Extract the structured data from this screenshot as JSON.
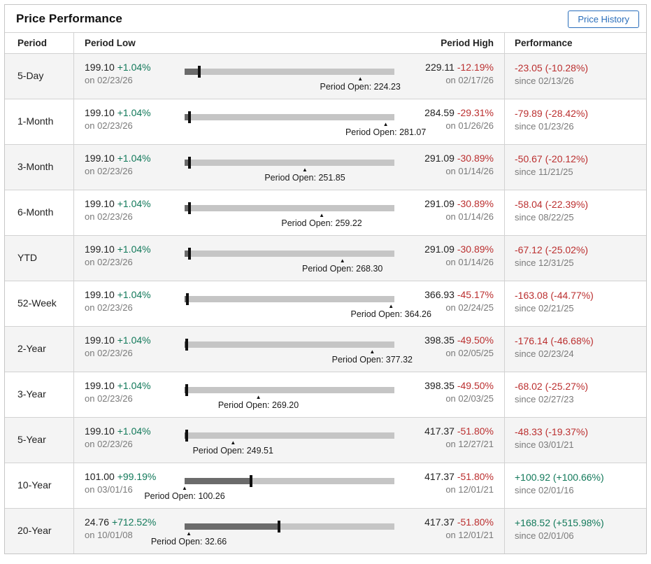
{
  "header": {
    "title": "Price Performance",
    "button_label": "Price History"
  },
  "columns": {
    "period": "Period",
    "low": "Period Low",
    "high": "Period High",
    "performance": "Performance"
  },
  "open_label_prefix": "Period Open:",
  "slider_current_value": 201.17,
  "colors": {
    "positive": "#12795a",
    "negative": "#bb2f2f",
    "accent_blue": "#2a6ebb",
    "track": "#c5c5c5",
    "range_fill": "#6b6b6b",
    "marker": "#111111"
  },
  "rows": [
    {
      "period": "5-Day",
      "low": {
        "price": "199.10",
        "change": "+1.04%",
        "date": "on 02/23/26"
      },
      "high": {
        "price": "229.11",
        "change": "-12.19%",
        "date": "on 02/17/26"
      },
      "performance": {
        "value": "-23.05 (-10.28%)",
        "since": "since 02/13/26"
      },
      "slider": {
        "min": 199.1,
        "max": 229.11,
        "open": 224.23
      }
    },
    {
      "period": "1-Month",
      "low": {
        "price": "199.10",
        "change": "+1.04%",
        "date": "on 02/23/26"
      },
      "high": {
        "price": "284.59",
        "change": "-29.31%",
        "date": "on 01/26/26"
      },
      "performance": {
        "value": "-79.89 (-28.42%)",
        "since": "since 01/23/26"
      },
      "slider": {
        "min": 199.1,
        "max": 284.59,
        "open": 281.07
      }
    },
    {
      "period": "3-Month",
      "low": {
        "price": "199.10",
        "change": "+1.04%",
        "date": "on 02/23/26"
      },
      "high": {
        "price": "291.09",
        "change": "-30.89%",
        "date": "on 01/14/26"
      },
      "performance": {
        "value": "-50.67 (-20.12%)",
        "since": "since 11/21/25"
      },
      "slider": {
        "min": 199.1,
        "max": 291.09,
        "open": 251.85
      }
    },
    {
      "period": "6-Month",
      "low": {
        "price": "199.10",
        "change": "+1.04%",
        "date": "on 02/23/26"
      },
      "high": {
        "price": "291.09",
        "change": "-30.89%",
        "date": "on 01/14/26"
      },
      "performance": {
        "value": "-58.04 (-22.39%)",
        "since": "since 08/22/25"
      },
      "slider": {
        "min": 199.1,
        "max": 291.09,
        "open": 259.22
      }
    },
    {
      "period": "YTD",
      "low": {
        "price": "199.10",
        "change": "+1.04%",
        "date": "on 02/23/26"
      },
      "high": {
        "price": "291.09",
        "change": "-30.89%",
        "date": "on 01/14/26"
      },
      "performance": {
        "value": "-67.12 (-25.02%)",
        "since": "since 12/31/25"
      },
      "slider": {
        "min": 199.1,
        "max": 291.09,
        "open": 268.3
      }
    },
    {
      "period": "52-Week",
      "low": {
        "price": "199.10",
        "change": "+1.04%",
        "date": "on 02/23/26"
      },
      "high": {
        "price": "366.93",
        "change": "-45.17%",
        "date": "on 02/24/25"
      },
      "performance": {
        "value": "-163.08 (-44.77%)",
        "since": "since 02/21/25"
      },
      "slider": {
        "min": 199.1,
        "max": 366.93,
        "open": 364.26
      }
    },
    {
      "period": "2-Year",
      "low": {
        "price": "199.10",
        "change": "+1.04%",
        "date": "on 02/23/26"
      },
      "high": {
        "price": "398.35",
        "change": "-49.50%",
        "date": "on 02/05/25"
      },
      "performance": {
        "value": "-176.14 (-46.68%)",
        "since": "since 02/23/24"
      },
      "slider": {
        "min": 199.1,
        "max": 398.35,
        "open": 377.32
      }
    },
    {
      "period": "3-Year",
      "low": {
        "price": "199.10",
        "change": "+1.04%",
        "date": "on 02/23/26"
      },
      "high": {
        "price": "398.35",
        "change": "-49.50%",
        "date": "on 02/03/25"
      },
      "performance": {
        "value": "-68.02 (-25.27%)",
        "since": "since 02/27/23"
      },
      "slider": {
        "min": 199.1,
        "max": 398.35,
        "open": 269.2
      }
    },
    {
      "period": "5-Year",
      "low": {
        "price": "199.10",
        "change": "+1.04%",
        "date": "on 02/23/26"
      },
      "high": {
        "price": "417.37",
        "change": "-51.80%",
        "date": "on 12/27/21"
      },
      "performance": {
        "value": "-48.33 (-19.37%)",
        "since": "since 03/01/21"
      },
      "slider": {
        "min": 199.1,
        "max": 417.37,
        "open": 249.51
      }
    },
    {
      "period": "10-Year",
      "low": {
        "price": "101.00",
        "change": "+99.19%",
        "date": "on 03/01/16"
      },
      "high": {
        "price": "417.37",
        "change": "-51.80%",
        "date": "on 12/01/21"
      },
      "performance": {
        "value": "+100.92 (+100.66%)",
        "since": "since 02/01/16"
      },
      "slider": {
        "min": 101.0,
        "max": 417.37,
        "open": 100.26
      }
    },
    {
      "period": "20-Year",
      "low": {
        "price": "24.76",
        "change": "+712.52%",
        "date": "on 10/01/08"
      },
      "high": {
        "price": "417.37",
        "change": "-51.80%",
        "date": "on 12/01/21"
      },
      "performance": {
        "value": "+168.52 (+515.98%)",
        "since": "since 02/01/06"
      },
      "slider": {
        "min": 24.76,
        "max": 417.37,
        "open": 32.66
      }
    }
  ]
}
